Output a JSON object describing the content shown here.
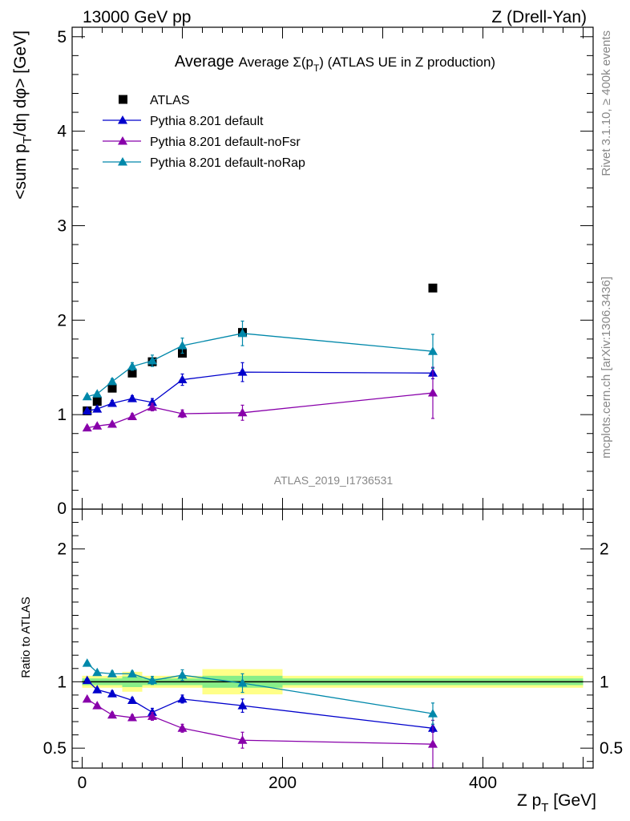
{
  "header": {
    "left": "13000 GeV pp",
    "right": "Z (Drell-Yan)"
  },
  "side_labels": {
    "rivet": "Rivet 3.1.10, ≥ 400k events",
    "mcplots": "mcplots.cern.ch [arXiv:1306.3436]"
  },
  "chart_data": [
    {
      "type": "scatter",
      "title_prefix": "Average Σ(p",
      "title_sub": "T",
      "title_suffix": ") (ATLAS UE in Z production)",
      "ylabel": "<sum p_T/dη dφ> [GeV]",
      "ylabel_parts": {
        "a": "<sum p",
        "sub": "T",
        "b": "/dη dφ> [GeV]"
      },
      "xlim": [
        -10,
        510
      ],
      "ylim": [
        0,
        5.1
      ],
      "yticks": [
        "1",
        "2",
        "3",
        "4",
        "5"
      ],
      "ytick_values": [
        1,
        2,
        3,
        4,
        5
      ],
      "y_zero_label": "0",
      "watermark": "ATLAS_2019_I1736531",
      "legend_position": "top-left",
      "series": [
        {
          "name": "ATLAS",
          "color": "#000000",
          "marker": "square",
          "x": [
            5,
            15,
            30,
            50,
            70,
            100,
            160,
            350
          ],
          "y": [
            1.04,
            1.14,
            1.28,
            1.44,
            1.56,
            1.65,
            1.87,
            2.34
          ],
          "err": [
            0,
            0,
            0,
            0,
            0,
            0,
            0,
            0
          ]
        },
        {
          "name": "Pythia 8.201 default",
          "color": "#0000cc",
          "marker": "triangle",
          "line": true,
          "x": [
            5,
            15,
            30,
            50,
            70,
            100,
            160,
            350
          ],
          "y": [
            1.04,
            1.06,
            1.12,
            1.17,
            1.13,
            1.37,
            1.45,
            1.44
          ],
          "err": [
            0.02,
            0.02,
            0.03,
            0.03,
            0.04,
            0.06,
            0.1,
            0.06
          ]
        },
        {
          "name": "Pythia 8.201 default-noFsr",
          "color": "#8800aa",
          "marker": "triangle",
          "line": true,
          "x": [
            5,
            15,
            30,
            50,
            70,
            100,
            160,
            350
          ],
          "y": [
            0.86,
            0.88,
            0.9,
            0.98,
            1.08,
            1.01,
            1.02,
            1.23
          ],
          "err": [
            0.02,
            0.02,
            0.02,
            0.03,
            0.04,
            0.04,
            0.08,
            0.27
          ]
        },
        {
          "name": "Pythia 8.201 default-noRap",
          "color": "#0088aa",
          "marker": "triangle",
          "line": true,
          "x": [
            5,
            15,
            30,
            50,
            70,
            100,
            160,
            350
          ],
          "y": [
            1.19,
            1.22,
            1.35,
            1.51,
            1.57,
            1.73,
            1.86,
            1.67
          ],
          "err": [
            0.02,
            0.02,
            0.03,
            0.04,
            0.06,
            0.08,
            0.13,
            0.18
          ]
        }
      ]
    },
    {
      "type": "scatter",
      "ylabel": "Ratio to ATLAS",
      "xlabel_parts": {
        "a": "Z p",
        "sub": "T",
        "b": " [GeV]"
      },
      "xlim": [
        -10,
        510
      ],
      "ylim": [
        0.35,
        2.3
      ],
      "xticks": [
        "0",
        "200",
        "400"
      ],
      "xtick_values": [
        0,
        200,
        400
      ],
      "yticks": [
        "0.5",
        "1",
        "2"
      ],
      "ytick_values": [
        0.5,
        1,
        2
      ],
      "bands": [
        {
          "x0": 0,
          "x1": 10,
          "y0": 0.955,
          "y1": 1.045,
          "inner_y0": 0.975,
          "inner_y1": 1.025
        },
        {
          "x0": 10,
          "x1": 20,
          "y0": 0.955,
          "y1": 1.045,
          "inner_y0": 0.975,
          "inner_y1": 1.025
        },
        {
          "x0": 20,
          "x1": 40,
          "y0": 0.955,
          "y1": 1.045,
          "inner_y0": 0.975,
          "inner_y1": 1.025
        },
        {
          "x0": 40,
          "x1": 60,
          "y0": 0.925,
          "y1": 1.075,
          "inner_y0": 0.96,
          "inner_y1": 1.04
        },
        {
          "x0": 60,
          "x1": 80,
          "y0": 0.955,
          "y1": 1.045,
          "inner_y0": 0.975,
          "inner_y1": 1.025
        },
        {
          "x0": 80,
          "x1": 120,
          "y0": 0.955,
          "y1": 1.045,
          "inner_y0": 0.975,
          "inner_y1": 1.025
        },
        {
          "x0": 120,
          "x1": 200,
          "y0": 0.905,
          "y1": 1.095,
          "inner_y0": 0.955,
          "inner_y1": 1.045
        },
        {
          "x0": 200,
          "x1": 500,
          "y0": 0.955,
          "y1": 1.045,
          "inner_y0": 0.975,
          "inner_y1": 1.025
        }
      ],
      "series": [
        {
          "name": "Pythia 8.201 default",
          "color": "#0000cc",
          "marker": "triangle",
          "x": [
            5,
            15,
            30,
            50,
            70,
            100,
            160,
            350
          ],
          "y": [
            1.01,
            0.94,
            0.91,
            0.86,
            0.77,
            0.87,
            0.82,
            0.65
          ],
          "err": [
            0.01,
            0.01,
            0.02,
            0.02,
            0.03,
            0.03,
            0.05,
            0.03
          ]
        },
        {
          "name": "Pythia 8.201 default-noFsr",
          "color": "#8800aa",
          "marker": "triangle",
          "x": [
            5,
            15,
            30,
            50,
            70,
            100,
            160,
            350
          ],
          "y": [
            0.87,
            0.82,
            0.75,
            0.73,
            0.74,
            0.65,
            0.56,
            0.53
          ],
          "err": [
            0.01,
            0.01,
            0.02,
            0.02,
            0.03,
            0.03,
            0.06,
            0.18
          ]
        },
        {
          "name": "Pythia 8.201 default-noRap",
          "color": "#0088aa",
          "marker": "triangle",
          "x": [
            5,
            15,
            30,
            50,
            70,
            100,
            160,
            350
          ],
          "y": [
            1.14,
            1.07,
            1.06,
            1.06,
            1.01,
            1.05,
            0.99,
            0.76
          ],
          "err": [
            0.01,
            0.01,
            0.02,
            0.02,
            0.03,
            0.04,
            0.07,
            0.08
          ]
        }
      ]
    }
  ]
}
